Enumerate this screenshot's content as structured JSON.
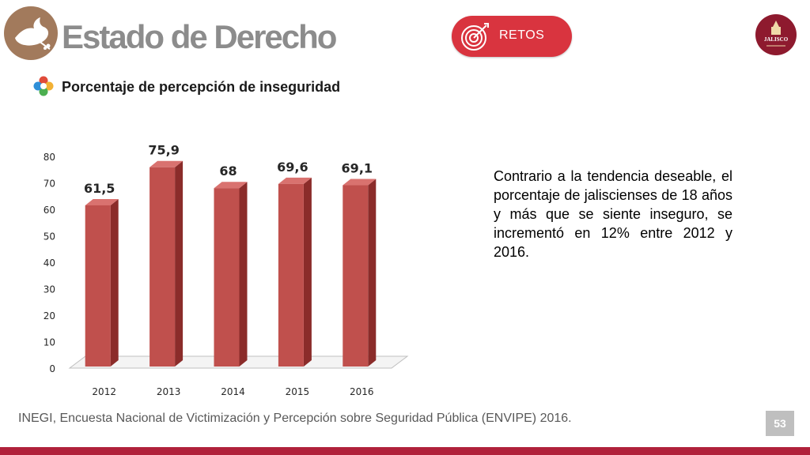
{
  "header": {
    "title": "Estado de Derecho",
    "badge_label": "RETOS",
    "logo_icon": "dove-icon",
    "badge_icon": "target-icon",
    "seal_text": "JALISCO"
  },
  "subtitle": "Porcentaje de percepción de inseguridad",
  "commentary": "Contrario a la tendencia deseable, el porcentaje de jaliscienses de 18 años y más que se siente inseguro, se incrementó en 12% entre 2012 y 2016.",
  "source": "INEGI, Encuesta Nacional de Victimización y Percepción sobre Seguridad Pública (ENVIPE) 2016.",
  "page_number": "53",
  "colors": {
    "bar_front": "#c0504d",
    "bar_side": "#8b2c2a",
    "bar_top": "#d9726f",
    "accent": "#d9343f",
    "footer": "#b0213b"
  },
  "chart_data": {
    "type": "bar",
    "categories": [
      "2012",
      "2013",
      "2014",
      "2015",
      "2016"
    ],
    "values": [
      61.5,
      75.9,
      68,
      69.6,
      69.1
    ],
    "value_labels": [
      "61,5",
      "75,9",
      "68",
      "69,6",
      "69,1"
    ],
    "y_ticks": [
      "0",
      "10",
      "20",
      "30",
      "40",
      "50",
      "60",
      "70",
      "80"
    ],
    "title": "",
    "xlabel": "",
    "ylabel": "",
    "ylim": [
      0,
      80
    ],
    "grid": false,
    "legend": "none",
    "style": "3d-column"
  }
}
